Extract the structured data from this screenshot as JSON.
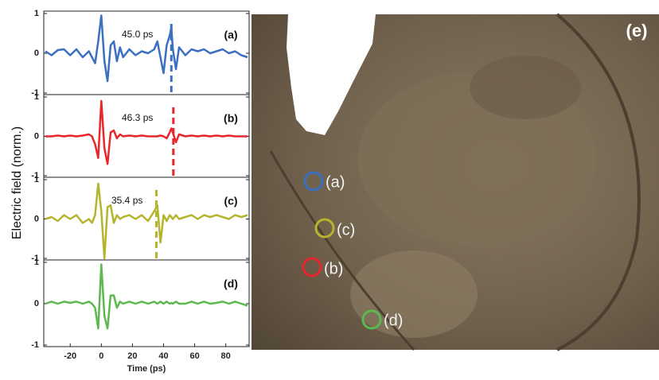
{
  "shared_ylabel": "Electric field (norm.)",
  "chart_data": [
    {
      "type": "line",
      "label": "(a)",
      "annotation": "45.0 ps",
      "marker_x": 45.0,
      "color": "#3b6fc0",
      "x": [
        -36,
        -32,
        -28,
        -24,
        -20,
        -16,
        -12,
        -8,
        -6,
        -4,
        -2,
        0,
        2,
        4,
        6,
        8,
        10,
        12,
        14,
        18,
        22,
        26,
        30,
        34,
        36,
        38,
        40,
        42,
        44,
        45,
        46,
        48,
        50,
        54,
        58,
        62,
        66,
        70,
        74,
        78,
        82,
        86,
        90,
        94
      ],
      "values": [
        0.05,
        -0.05,
        0.08,
        0.1,
        -0.05,
        0.1,
        -0.1,
        0.05,
        -0.1,
        -0.25,
        0.3,
        0.95,
        -0.2,
        -0.7,
        0.2,
        0.3,
        -0.2,
        0.15,
        -0.1,
        0.1,
        -0.05,
        0.05,
        0.0,
        0.1,
        0.3,
        -0.1,
        -0.5,
        0.2,
        0.45,
        0.65,
        0.1,
        -0.4,
        0.15,
        -0.05,
        0.1,
        0.05,
        0.1,
        0.0,
        0.05,
        0.1,
        0.0,
        0.05,
        -0.05,
        -0.1
      ],
      "xlim": [
        -37,
        95
      ],
      "ylim": [
        -1,
        1
      ],
      "yticks": [
        -1,
        0,
        1
      ]
    },
    {
      "type": "line",
      "label": "(b)",
      "annotation": "46.3 ps",
      "marker_x": 46.3,
      "color": "#e8262b",
      "x": [
        -36,
        -32,
        -28,
        -24,
        -20,
        -16,
        -12,
        -8,
        -6,
        -4,
        -2,
        0,
        2,
        4,
        6,
        8,
        10,
        12,
        14,
        18,
        22,
        26,
        30,
        34,
        36,
        38,
        40,
        42,
        44,
        45,
        46,
        48,
        50,
        54,
        58,
        62,
        66,
        70,
        74,
        78,
        82,
        86,
        90,
        94
      ],
      "values": [
        0,
        0,
        0.02,
        0,
        0.02,
        0,
        0.02,
        0.05,
        0,
        -0.2,
        -0.55,
        0.9,
        -0.3,
        -0.7,
        0.1,
        0.15,
        -0.05,
        0.05,
        0,
        0.02,
        0,
        0.02,
        0,
        0,
        0,
        0.02,
        0,
        -0.05,
        0.1,
        0.2,
        0.1,
        -0.15,
        0.05,
        0,
        0.02,
        0,
        0.02,
        0,
        0.02,
        0,
        0.02,
        0,
        0,
        0
      ],
      "xlim": [
        -37,
        95
      ],
      "ylim": [
        -1,
        1
      ],
      "yticks": [
        -1,
        0,
        1
      ]
    },
    {
      "type": "line",
      "label": "(c)",
      "annotation": "35.4 ps",
      "marker_x": 35.4,
      "color": "#b5b42c",
      "x": [
        -36,
        -32,
        -28,
        -24,
        -20,
        -16,
        -12,
        -8,
        -6,
        -4,
        -2,
        0,
        2,
        4,
        6,
        8,
        10,
        12,
        14,
        18,
        22,
        26,
        30,
        34,
        36,
        38,
        40,
        42,
        44,
        45,
        46,
        48,
        50,
        54,
        58,
        62,
        66,
        70,
        74,
        78,
        82,
        86,
        90,
        94
      ],
      "values": [
        0,
        0.05,
        -0.05,
        0.1,
        0,
        0.1,
        -0.1,
        0,
        -0.1,
        0.1,
        0.9,
        0.2,
        -1.0,
        0.3,
        0.35,
        -0.1,
        0.1,
        0,
        0.05,
        0.1,
        0,
        0.1,
        -0.05,
        0.2,
        0.35,
        -0.6,
        0.1,
        -0.05,
        0.1,
        0.05,
        0,
        0.1,
        0,
        0.05,
        0.1,
        0,
        0.1,
        0.05,
        0.1,
        0.05,
        0,
        0.1,
        0.05,
        0.1
      ],
      "xlim": [
        -37,
        95
      ],
      "ylim": [
        -1,
        1
      ],
      "yticks": [
        -1,
        0,
        1
      ]
    },
    {
      "type": "line",
      "label": "(d)",
      "color": "#5db84f",
      "x": [
        -36,
        -32,
        -28,
        -24,
        -20,
        -16,
        -12,
        -8,
        -6,
        -4,
        -2,
        0,
        2,
        4,
        6,
        8,
        10,
        12,
        14,
        18,
        22,
        26,
        30,
        34,
        36,
        38,
        40,
        42,
        44,
        45,
        46,
        48,
        50,
        54,
        58,
        62,
        66,
        70,
        74,
        78,
        82,
        86,
        90,
        94
      ],
      "values": [
        0,
        0.05,
        0,
        0.05,
        0.02,
        0.05,
        0,
        0.05,
        0,
        -0.1,
        -0.6,
        0.95,
        -0.3,
        -0.6,
        0.2,
        0.2,
        -0.1,
        0.05,
        0,
        0.05,
        0,
        0.05,
        0,
        0.05,
        0,
        0.05,
        0,
        0.05,
        0,
        0.02,
        0,
        0.05,
        0,
        0,
        0.05,
        0,
        0.05,
        0,
        0.02,
        0.05,
        0,
        0.05,
        0,
        -0.05
      ],
      "xlim": [
        -37,
        95
      ],
      "ylim": [
        -1,
        1
      ],
      "yticks": [
        -1,
        0,
        1
      ],
      "xticks": [
        -20,
        0,
        20,
        40,
        60,
        80
      ],
      "xlabel": "Time (ps)"
    }
  ],
  "image": {
    "label": "(e)",
    "markers": [
      {
        "label": "(a)",
        "color": "#3b6fc0"
      },
      {
        "label": "(c)",
        "color": "#b5b42c"
      },
      {
        "label": "(b)",
        "color": "#e8262b"
      },
      {
        "label": "(d)",
        "color": "#5db84f"
      }
    ]
  }
}
